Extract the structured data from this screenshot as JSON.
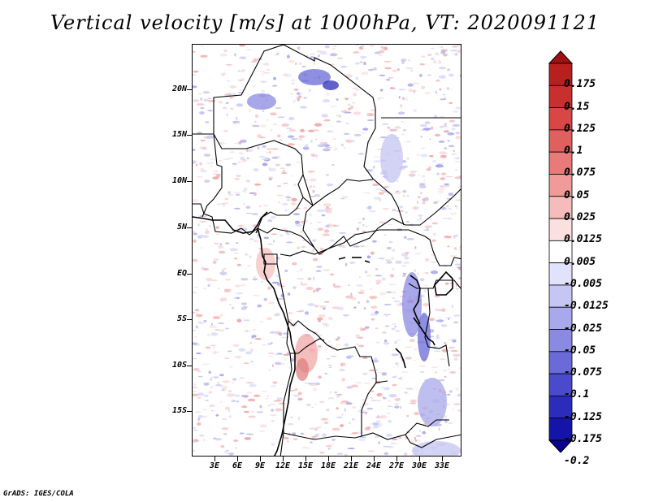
{
  "title": "Vertical velocity [m/s] at 1000hPa, VT: 2020091121",
  "lat_labels": [
    "20N",
    "15N",
    "10N",
    "5N",
    "EQ",
    "5S",
    "10S",
    "15S"
  ],
  "lon_labels": [
    "3E",
    "6E",
    "9E",
    "12E",
    "15E",
    "18E",
    "21E",
    "24E",
    "27E",
    "30E",
    "33E"
  ],
  "colorbar": {
    "labels": [
      "0.175",
      "0.15",
      "0.125",
      "0.1",
      "0.075",
      "0.05",
      "0.025",
      "0.0125",
      "0.005",
      "-0.005",
      "-0.0125",
      "-0.025",
      "-0.05",
      "-0.075",
      "-0.1",
      "-0.125",
      "-0.175",
      "-0.2"
    ],
    "colors": [
      "#a01010",
      "#b82020",
      "#c83030",
      "#d84646",
      "#e06060",
      "#e87a7a",
      "#f09a9a",
      "#f6bcbc",
      "#fbe0e0",
      "#ffffff",
      "#e2e2fb",
      "#c6c6f4",
      "#a8a8ec",
      "#8a8ae2",
      "#6a6ad8",
      "#4a4acc",
      "#2c2cbc",
      "#1414a8",
      "#0a0090"
    ]
  },
  "footer": "GrADS: IGES/COLA"
}
